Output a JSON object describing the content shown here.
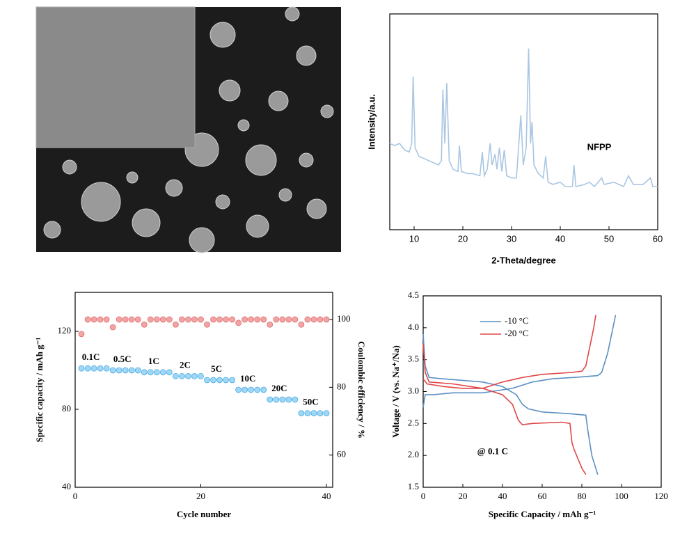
{
  "chart_data": [
    {
      "type": "line",
      "xlabel": "2-Theta/degree",
      "ylabel": "Intensity/a.u.",
      "annotations": [
        "NFPP"
      ],
      "x": [
        5,
        6,
        7,
        8,
        9,
        9.5,
        9.8,
        10.2,
        11,
        12,
        13,
        14,
        15,
        15.6,
        15.9,
        16.3,
        16.7,
        17.2,
        18,
        19,
        19.3,
        19.7,
        21,
        22,
        23.5,
        24,
        24.4,
        25,
        25.6,
        26,
        26.6,
        27,
        27.5,
        28,
        28.5,
        29,
        30,
        31,
        31.9,
        32.4,
        33,
        33.5,
        33.9,
        34.2,
        34.6,
        35.5,
        36.5,
        37,
        37.5,
        38.5,
        40,
        41,
        42.5,
        42.8,
        43.2,
        45,
        46,
        47,
        48.5,
        49,
        51,
        53,
        54,
        55,
        57,
        58.5,
        59,
        60
      ],
      "series": [
        {
          "color": "#a9c6e2",
          "values": [
            40,
            39,
            40,
            37,
            36,
            40,
            71,
            38,
            34,
            33,
            32,
            31,
            30,
            32,
            65,
            40,
            68,
            32,
            28,
            27,
            39,
            27,
            26,
            26,
            25,
            36,
            25,
            28,
            40,
            30,
            35,
            28,
            38,
            27,
            37,
            25,
            24,
            24,
            53,
            30,
            38,
            84,
            40,
            50,
            30,
            26,
            24,
            34,
            22,
            21,
            22,
            20,
            20,
            30,
            20,
            21,
            22,
            20,
            24,
            21,
            22,
            20,
            25,
            21,
            21,
            24,
            20,
            20
          ]
        }
      ],
      "xlim": [
        5,
        60
      ],
      "xticks": [
        10,
        20,
        30,
        40,
        50,
        60
      ],
      "ylim": [
        0,
        100
      ]
    },
    {
      "type": "scatter",
      "xlabel": "Cycle number",
      "ylabel": "Specific capacity / mAh g⁻¹",
      "y2label": "Coulombic efficiency / %",
      "annotations": [
        "0.1C",
        "0.5C",
        "1C",
        "2C",
        "5C",
        "10C",
        "20C",
        "50C"
      ],
      "x": [
        1,
        2,
        3,
        4,
        5,
        6,
        7,
        8,
        9,
        10,
        11,
        12,
        13,
        14,
        15,
        16,
        17,
        18,
        19,
        20,
        21,
        22,
        23,
        24,
        25,
        26,
        27,
        28,
        29,
        30,
        31,
        32,
        33,
        34,
        35,
        36,
        37,
        38,
        39,
        40
      ],
      "series": [
        {
          "color": "#9fd8f6",
          "edge": "#4aa8e0",
          "axis": "y",
          "values": [
            101,
            101,
            101,
            101,
            101,
            100,
            100,
            100,
            100,
            100,
            99,
            99,
            99,
            99,
            99,
            97,
            97,
            97,
            97,
            97,
            95,
            95,
            95,
            95,
            95,
            90,
            90,
            90,
            90,
            90,
            85,
            85,
            85,
            85,
            85,
            78,
            78,
            78,
            78,
            78
          ]
        },
        {
          "color": "#f2a3a3",
          "edge": "#e07070",
          "axis": "y2",
          "values": [
            95.7,
            100,
            100,
            100,
            100,
            97.7,
            100,
            100,
            100,
            100,
            98.5,
            100,
            100,
            100,
            100,
            98.5,
            100,
            100,
            100,
            100,
            98.5,
            100,
            100,
            100,
            100,
            99,
            100,
            100,
            100,
            100,
            98.5,
            100,
            100,
            100,
            100,
            98.5,
            100,
            100,
            100,
            100
          ]
        }
      ],
      "xlim": [
        0,
        41
      ],
      "xticks": [
        0,
        20,
        40
      ],
      "ylim": [
        40,
        140
      ],
      "yticks": [
        40,
        80,
        120
      ],
      "y2lim": [
        50.5,
        108
      ],
      "y2ticks": [
        60,
        80,
        100
      ]
    },
    {
      "type": "line",
      "xlabel": "Specific Capacity / mAh g⁻¹",
      "ylabel": "Voltage / V (vs. Na⁺/Na)",
      "annotations": [
        "@ 0.1 C"
      ],
      "series": [
        {
          "name": "-10 °C",
          "color": "#5b8fc4",
          "x": [
            0,
            1,
            5,
            15,
            30,
            45,
            55,
            65,
            80,
            88,
            90,
            93,
            95,
            97,
            null,
            0,
            1,
            3,
            10,
            30,
            40,
            47,
            50,
            53,
            60,
            75,
            82,
            83,
            85,
            88
          ],
          "values": [
            2.75,
            2.95,
            2.95,
            2.98,
            2.98,
            3.05,
            3.15,
            3.2,
            3.23,
            3.25,
            3.3,
            3.6,
            3.9,
            4.2,
            null,
            3.9,
            3.4,
            3.22,
            3.2,
            3.15,
            3.08,
            2.95,
            2.8,
            2.73,
            2.68,
            2.65,
            2.63,
            2.4,
            2.0,
            1.7
          ]
        },
        {
          "name": "-20 °C",
          "color": "#e04646",
          "x": [
            0,
            2,
            10,
            20,
            30,
            40,
            50,
            60,
            75,
            80,
            82,
            84,
            86,
            87,
            null,
            0,
            1,
            3,
            15,
            30,
            40,
            45,
            48,
            50,
            55,
            70,
            74,
            75,
            76,
            80,
            82
          ],
          "values": [
            3.2,
            3.12,
            3.08,
            3.05,
            3.05,
            3.15,
            3.22,
            3.27,
            3.3,
            3.32,
            3.4,
            3.7,
            4.0,
            4.2,
            null,
            3.75,
            3.3,
            3.15,
            3.12,
            3.05,
            2.95,
            2.8,
            2.55,
            2.48,
            2.5,
            2.52,
            2.5,
            2.2,
            2.1,
            1.8,
            1.7
          ]
        }
      ],
      "xlim": [
        0,
        120
      ],
      "xticks": [
        0,
        20,
        40,
        60,
        80,
        100,
        120
      ],
      "ylim": [
        1.5,
        4.5
      ],
      "yticks": [
        1.5,
        {
          "value": 2,
          "label": "2.0"
        },
        2.5,
        {
          "value": 3,
          "label": "3.0"
        },
        3.5,
        {
          "value": 4,
          "label": "4.0"
        },
        4.5
      ]
    }
  ]
}
